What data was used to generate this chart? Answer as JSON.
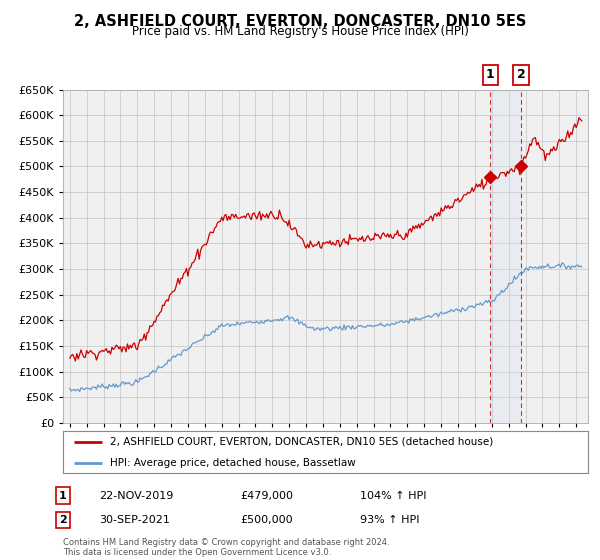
{
  "title": "2, ASHFIELD COURT, EVERTON, DONCASTER, DN10 5ES",
  "subtitle": "Price paid vs. HM Land Registry's House Price Index (HPI)",
  "legend_line1": "2, ASHFIELD COURT, EVERTON, DONCASTER, DN10 5ES (detached house)",
  "legend_line2": "HPI: Average price, detached house, Bassetlaw",
  "annotation1_date": "22-NOV-2019",
  "annotation1_price": "£479,000",
  "annotation1_hpi": "104% ↑ HPI",
  "annotation2_date": "30-SEP-2021",
  "annotation2_price": "£500,000",
  "annotation2_hpi": "93% ↑ HPI",
  "footer": "Contains HM Land Registry data © Crown copyright and database right 2024.\nThis data is licensed under the Open Government Licence v3.0.",
  "hpi_color": "#6699cc",
  "price_color": "#cc0000",
  "marker1_date": 2019.92,
  "marker1_value": 479000,
  "marker2_date": 2021.75,
  "marker2_value": 500000,
  "ylim": [
    0,
    650000
  ],
  "yticks": [
    0,
    50000,
    100000,
    150000,
    200000,
    250000,
    300000,
    350000,
    400000,
    450000,
    500000,
    550000,
    600000,
    650000
  ],
  "background_color": "#ffffff",
  "grid_color": "#cccccc",
  "plot_bg": "#f0f0f0"
}
